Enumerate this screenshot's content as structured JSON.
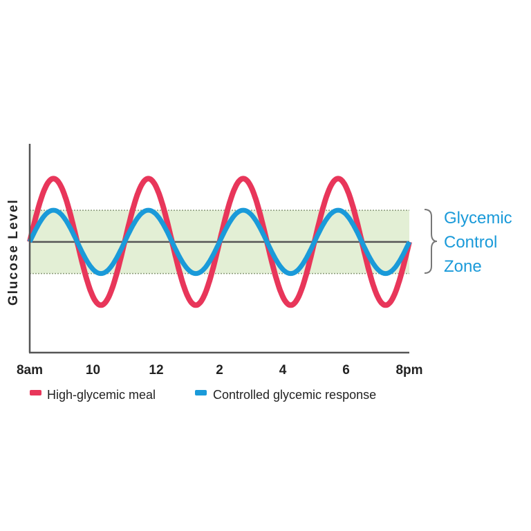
{
  "chart_data": {
    "type": "line",
    "title": "",
    "xlabel": "",
    "ylabel": "Glucose Level",
    "x_tick_labels": [
      "8am",
      "10",
      "12",
      "2",
      "4",
      "6",
      "8pm"
    ],
    "x_tick_hours": [
      0,
      2,
      4,
      6,
      8,
      10,
      12
    ],
    "xlim": [
      0,
      12
    ],
    "ylim": [
      -3.5,
      3.1
    ],
    "grid": false,
    "legend_position": "bottom",
    "series": [
      {
        "name": "High-glycemic meal",
        "color": "#e8365a",
        "shape": "sine",
        "amplitude": 2,
        "period_hours": 3,
        "phase_hours": 0
      },
      {
        "name": "Controlled glycemic response",
        "color": "#1a9ad9",
        "shape": "sine",
        "amplitude": 1,
        "period_hours": 3,
        "phase_hours": 0
      }
    ],
    "zone": {
      "label_lines": [
        "Glycemic",
        "Control",
        "Zone"
      ],
      "range": [
        -1,
        1
      ],
      "color": "#e3efd5"
    },
    "baseline": 0
  }
}
